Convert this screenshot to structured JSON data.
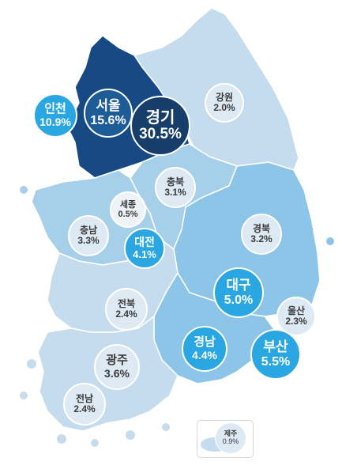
{
  "regions": [
    {
      "id": "gangwon",
      "name": "강원",
      "value": "2.0%",
      "color": "#c4dced"
    },
    {
      "id": "gyeonggi",
      "name": "경기",
      "value": "30.5%",
      "color": "#174a84"
    },
    {
      "id": "seoul",
      "name": "서울",
      "value": "15.6%",
      "color": "#1d5c97"
    },
    {
      "id": "incheon",
      "name": "인천",
      "value": "10.9%",
      "color": "#2aa7e3"
    },
    {
      "id": "chungbuk",
      "name": "충북",
      "value": "3.1%",
      "color": "#a6d0ea"
    },
    {
      "id": "sejong",
      "name": "세종",
      "value": "0.5%",
      "color": "#dde9f3"
    },
    {
      "id": "chungnam",
      "name": "충남",
      "value": "3.3%",
      "color": "#a6d0ea"
    },
    {
      "id": "daejeon",
      "name": "대전",
      "value": "4.1%",
      "color": "#2aa7e3"
    },
    {
      "id": "gyeongbuk",
      "name": "경북",
      "value": "3.2%",
      "color": "#8dc5e9"
    },
    {
      "id": "daegu",
      "name": "대구",
      "value": "5.0%",
      "color": "#2aa7e3"
    },
    {
      "id": "ulsan",
      "name": "울산",
      "value": "2.3%",
      "color": "#dde9f3"
    },
    {
      "id": "jeonbuk",
      "name": "전북",
      "value": "2.4%",
      "color": "#c4dced"
    },
    {
      "id": "gyeongnam",
      "name": "경남",
      "value": "4.4%",
      "color": "#8dc5e9"
    },
    {
      "id": "busan",
      "name": "부산",
      "value": "5.5%",
      "color": "#2aa7e3"
    },
    {
      "id": "gwangju",
      "name": "광주",
      "value": "3.6%",
      "color": "#dde9f3"
    },
    {
      "id": "jeonnam",
      "name": "전남",
      "value": "2.4%",
      "color": "#c4dced"
    },
    {
      "id": "jeju",
      "name": "제주",
      "value": "0.9%",
      "color": "#c4dced"
    }
  ]
}
